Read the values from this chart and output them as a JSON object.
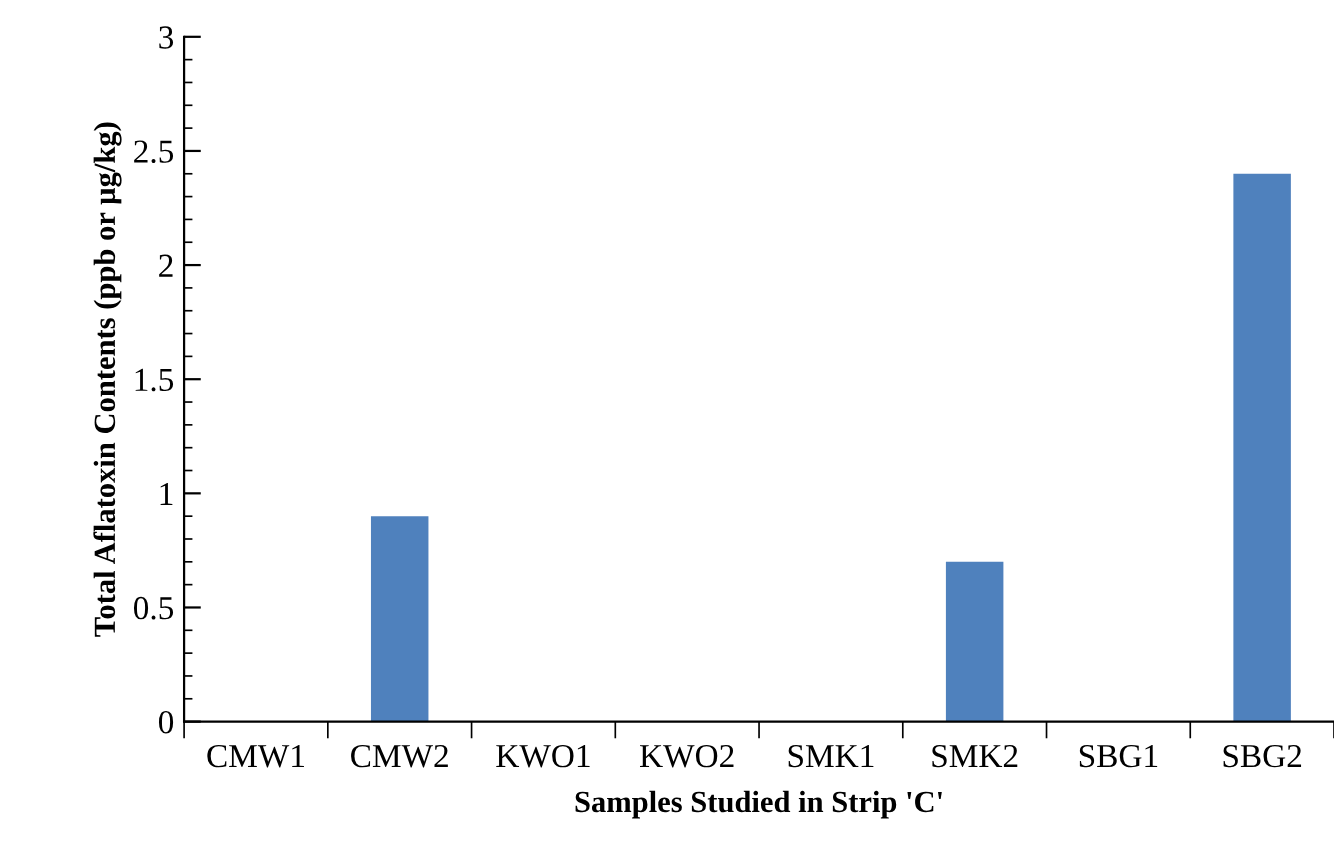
{
  "chart_data": {
    "type": "bar",
    "xlabel": "Samples Studied in Strip 'C'",
    "ylabel": "Total Aflatoxin Contents (ppb or µg/kg)",
    "categories": [
      "CMW1",
      "CMW2",
      "KWO1",
      "KWO2",
      "SMK1",
      "SMK2",
      "SBG1",
      "SBG2"
    ],
    "values": [
      0,
      0.9,
      0,
      0,
      0,
      0.7,
      0,
      2.4
    ],
    "color": "#4f81bd",
    "ylim": [
      0,
      3
    ],
    "yticks": [
      0,
      0.5,
      1,
      1.5,
      2,
      2.5,
      3
    ],
    "grid": false,
    "legend": false
  }
}
